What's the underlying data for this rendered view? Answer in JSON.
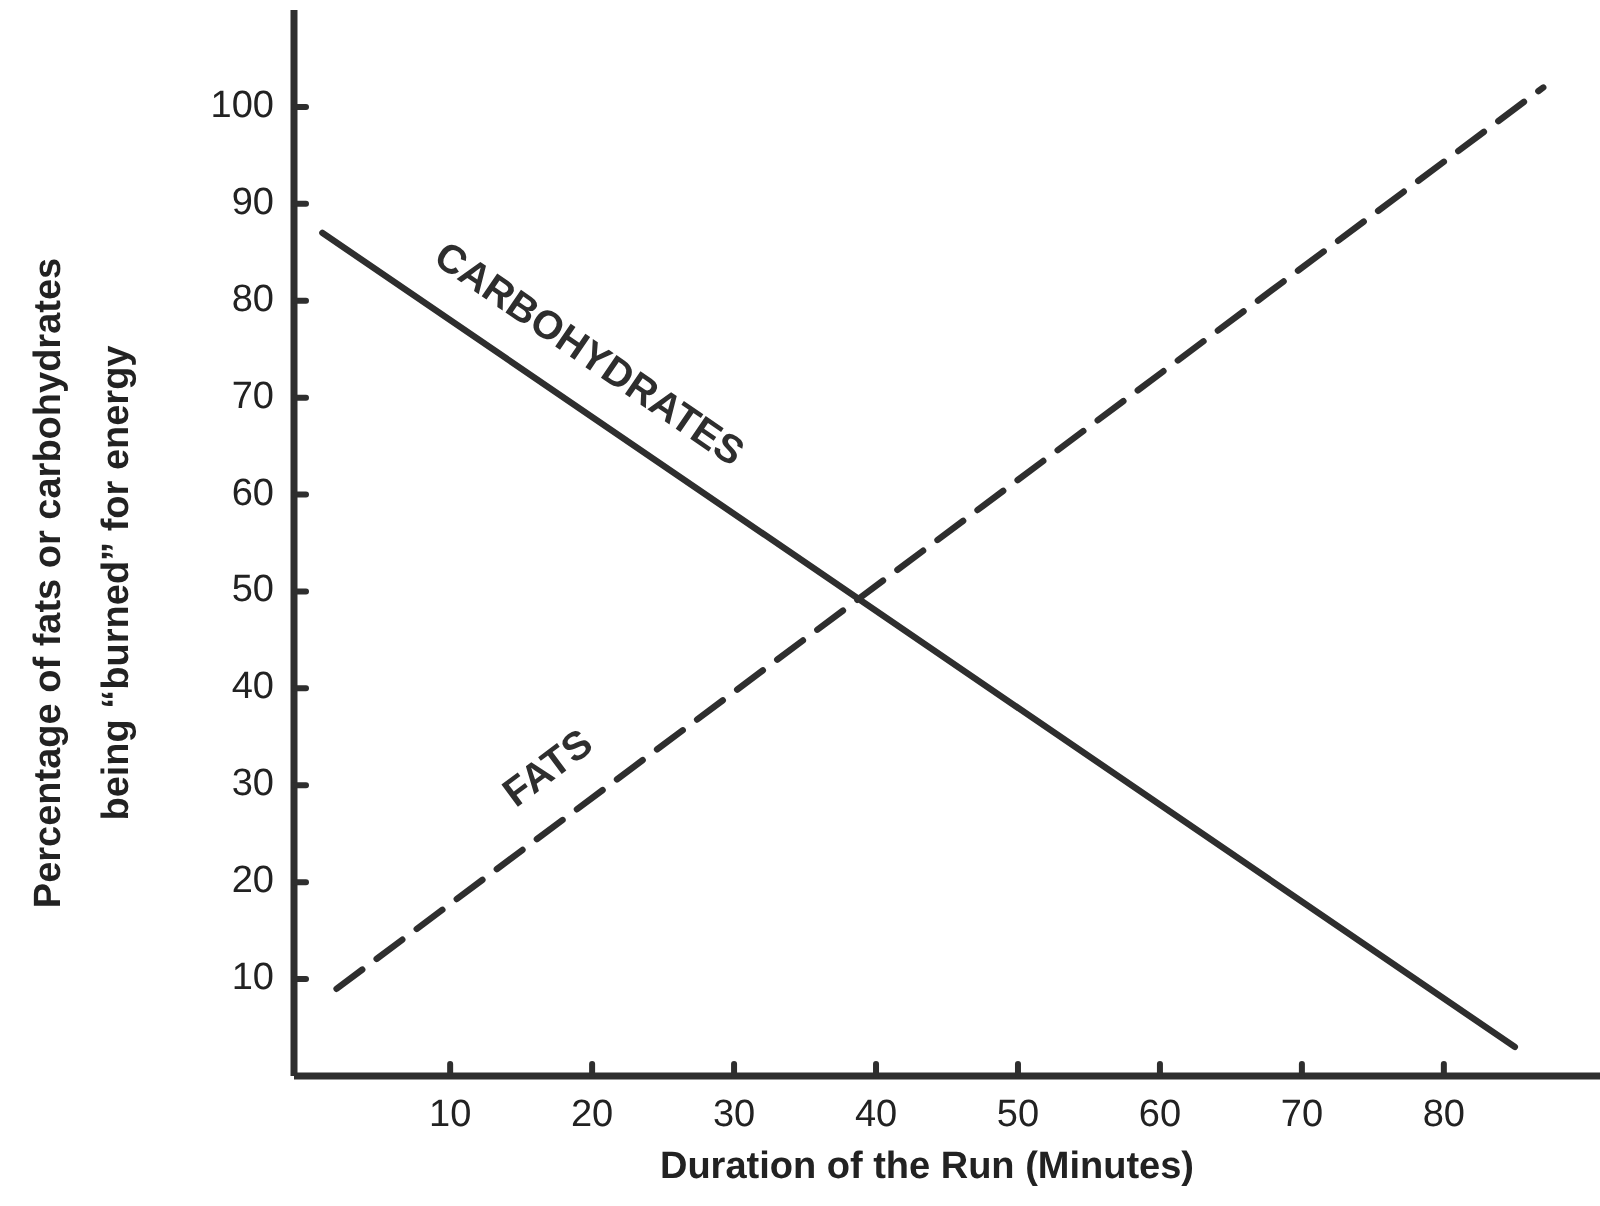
{
  "chart_data": {
    "type": "line",
    "xlabel": "Duration of the Run (Minutes)",
    "ylabel": "Percentage of fats or carbohydrates\nbeing “burned” for energy",
    "xlim": [
      -1,
      91
    ],
    "ylim": [
      0,
      110
    ],
    "xticks": [
      10,
      20,
      30,
      40,
      50,
      60,
      70,
      80
    ],
    "yticks": [
      10,
      20,
      30,
      40,
      50,
      60,
      70,
      80,
      90,
      100
    ],
    "grid": false,
    "legend": false,
    "marker": "none",
    "series": [
      {
        "name": "CARBOHYDRATES",
        "color": "#2e2e2e",
        "line_style": "solid",
        "x": [
          1,
          85
        ],
        "values": [
          87,
          3
        ]
      },
      {
        "name": "FATS",
        "color": "#2e2e2e",
        "line_style": "dashed",
        "x": [
          2,
          87
        ],
        "values": [
          9,
          102
        ]
      }
    ]
  }
}
